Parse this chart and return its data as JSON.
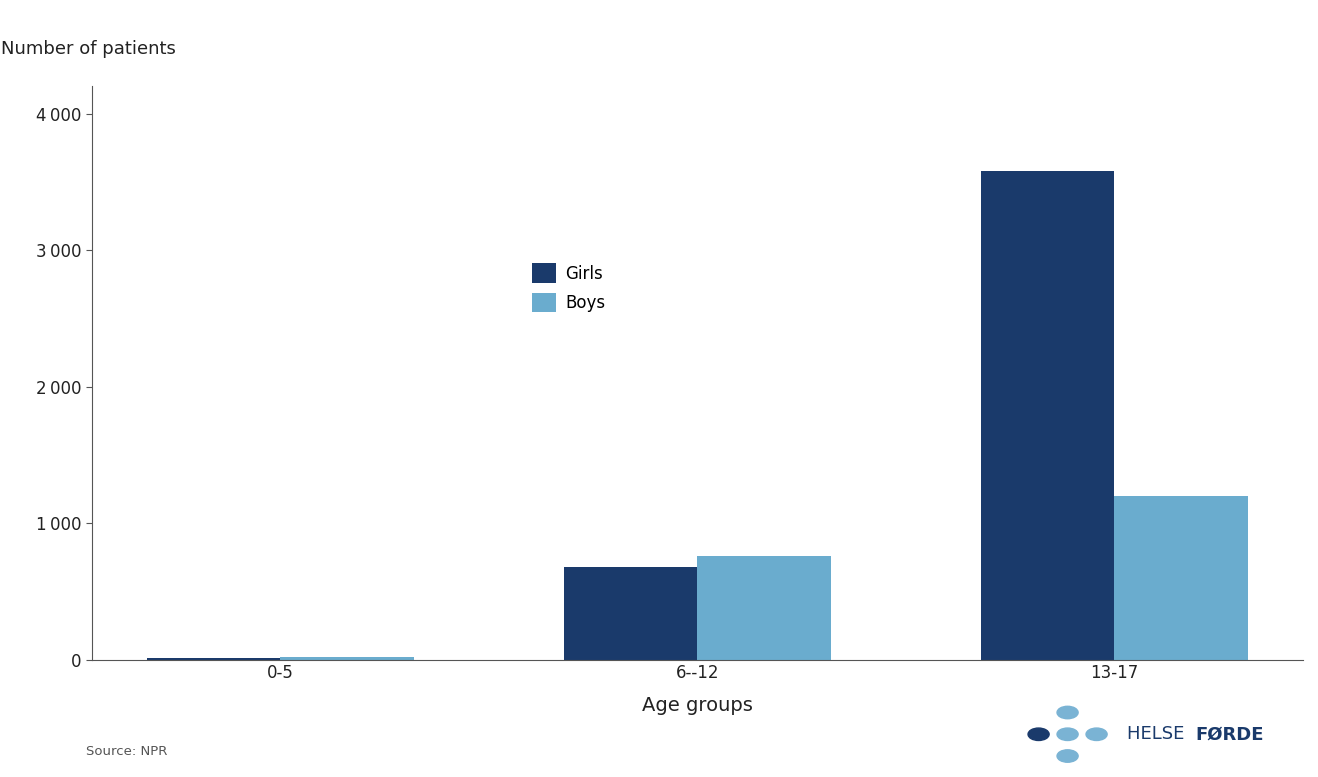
{
  "categories": [
    "0-5",
    "6--12",
    "13-17"
  ],
  "girls_values": [
    10,
    680,
    3580
  ],
  "boys_values": [
    20,
    760,
    1200
  ],
  "girls_color": "#1a3a6b",
  "boys_color": "#6aacce",
  "ylabel": "Number of patients",
  "xlabel": "Age groups",
  "ylim": [
    0,
    4200
  ],
  "yticks": [
    0,
    1000,
    2000,
    3000,
    4000
  ],
  "ytick_labels": [
    "0",
    "1 000",
    "2 000",
    "3 000",
    "4 000"
  ],
  "source_text": "Source: NPR",
  "legend_labels": [
    "Girls",
    "Boys"
  ],
  "bar_width": 0.32,
  "background_color": "#ffffff",
  "label_fontsize": 13,
  "tick_fontsize": 12,
  "logo_dark": "#1a3a6b",
  "logo_light": "#7ab3d4"
}
